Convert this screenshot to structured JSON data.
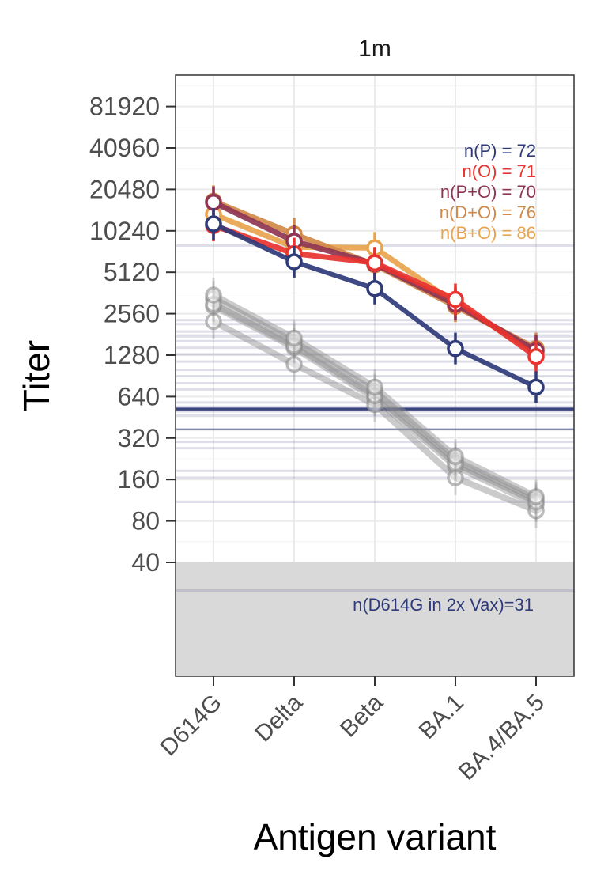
{
  "chart_data": {
    "type": "line",
    "facet": "1m",
    "xlabel": "Antigen variant",
    "ylabel": "Titer",
    "y_scale": "log2",
    "ylim": [
      10,
      120000
    ],
    "categories": [
      "D614G",
      "Delta",
      "Beta",
      "BA.1",
      "BA.4/BA.5"
    ],
    "y_ticks": [
      40,
      80,
      160,
      320,
      640,
      1280,
      2560,
      5120,
      10240,
      20480,
      40960,
      81920
    ],
    "y_tick_labels": [
      "40",
      "80",
      "160",
      "320",
      "640",
      "1280",
      "2560",
      "5120",
      "10240",
      "20480",
      "40960",
      "81920"
    ],
    "limit_of_detection": 40,
    "grid": true,
    "series": [
      {
        "name": "P",
        "color": "#2f3a78",
        "values": [
          11500,
          6100,
          3900,
          1430,
          750
        ]
      },
      {
        "name": "O",
        "color": "#e8332f",
        "values": [
          11200,
          7000,
          6000,
          3250,
          1250
        ]
      },
      {
        "name": "P+O",
        "color": "#8f3553",
        "values": [
          16500,
          8600,
          5900,
          3000,
          1380
        ]
      },
      {
        "name": "D+O",
        "color": "#d08949",
        "values": [
          16800,
          9700,
          5800,
          2900,
          1430
        ]
      },
      {
        "name": "B+O",
        "color": "#e8a44e",
        "values": [
          13500,
          7800,
          7700,
          3050,
          1330
        ]
      }
    ],
    "reference_series": [
      {
        "values": [
          3300,
          1600,
          700,
          220,
          115
        ]
      },
      {
        "values": [
          2900,
          1450,
          620,
          200,
          105
        ]
      },
      {
        "values": [
          2250,
          1100,
          560,
          165,
          95
        ]
      },
      {
        "values": [
          3000,
          1500,
          650,
          210,
          110
        ]
      },
      {
        "values": [
          3500,
          1700,
          750,
          235,
          120
        ]
      }
    ],
    "d614g_2x_vax_lines": [
      520,
      370,
      8000,
      2300,
      2150,
      1900,
      1750,
      1620,
      1450,
      1300,
      1150,
      1000,
      900,
      800,
      720,
      580,
      540,
      500,
      465,
      300,
      270,
      185,
      165,
      110,
      25
    ],
    "d614g_2x_vax_bold_lines": [
      520,
      370
    ],
    "legend_labels": [
      {
        "text": "n(P) = 72",
        "color": "#2f3a78"
      },
      {
        "text": "n(O) = 71",
        "color": "#e8332f"
      },
      {
        "text": "n(P+O) = 70",
        "color": "#8f3553"
      },
      {
        "text": "n(D+O) = 76",
        "color": "#d08949"
      },
      {
        "text": "n(B+O) = 86",
        "color": "#e8a44e"
      }
    ],
    "annotation": {
      "text": "n(D614G in 2x Vax)=31",
      "color": "#2f3a78"
    }
  }
}
